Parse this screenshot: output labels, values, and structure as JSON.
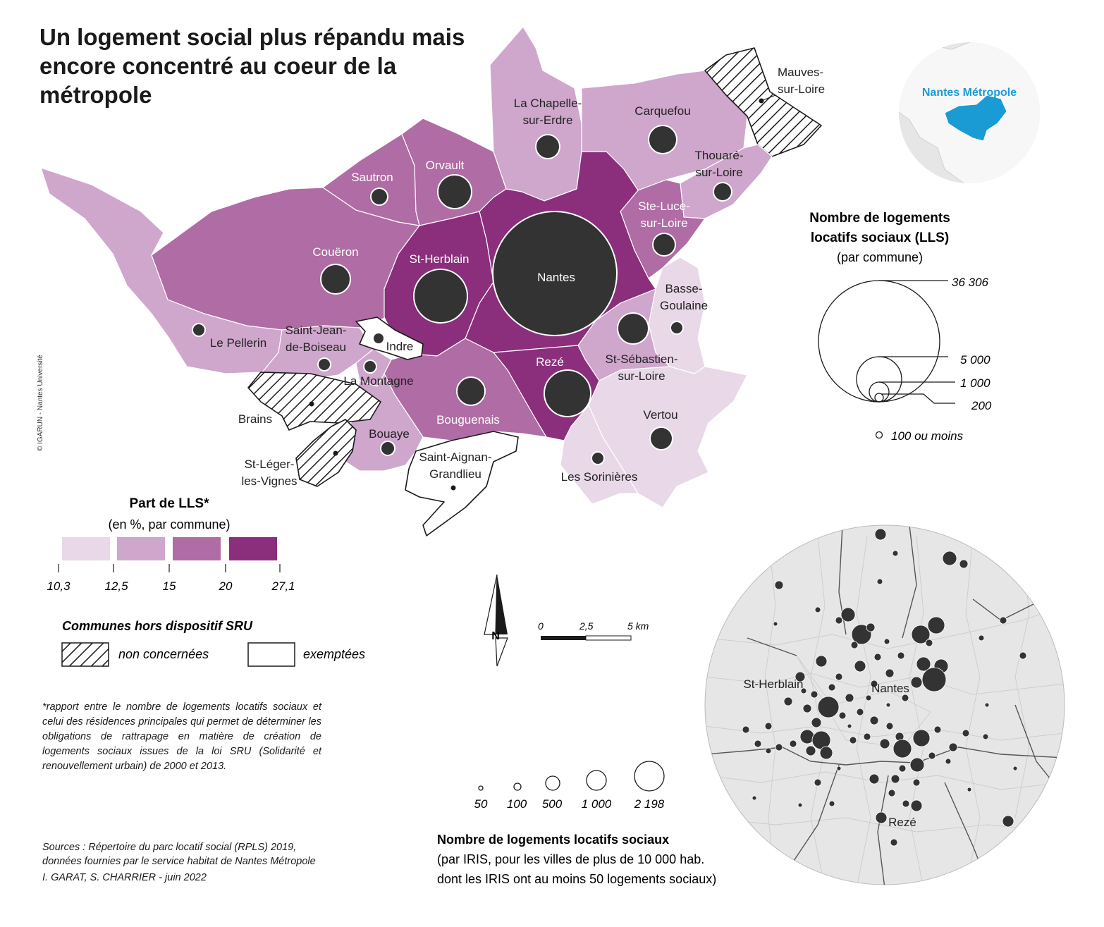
{
  "title": "Un logement social plus répandu mais encore concentré au coeur de la métropole",
  "colors": {
    "c1": "#e8d8e8",
    "c2": "#cfa6cc",
    "c3": "#b06ca4",
    "c4": "#8b2f7c",
    "bubble": "#333333",
    "inset_bg": "#e6e6e6",
    "locator_hl": "#1a9bd4"
  },
  "communes": [
    {
      "name": "Nantes",
      "class": 4,
      "lls_bubble": "Nantes"
    },
    {
      "name": "St-Herblain",
      "class": 4
    },
    {
      "name": "Rezé",
      "class": 4
    },
    {
      "name": "Orvault",
      "class": 3
    },
    {
      "name": "Sautron",
      "class": 3
    },
    {
      "name": "Couëron",
      "class": 3
    },
    {
      "name": "Ste-Luce-sur-Loire",
      "class": 3
    },
    {
      "name": "Bouguenais",
      "class": 3
    },
    {
      "name": "St-Sébastien-sur-Loire",
      "class": 2
    },
    {
      "name": "Carquefou",
      "class": 2
    },
    {
      "name": "La Chapelle-sur-Erdre",
      "class": 2
    },
    {
      "name": "Thouaré-sur-Loire",
      "class": 2
    },
    {
      "name": "Le Pellerin",
      "class": 2
    },
    {
      "name": "Saint-Jean-de-Boiseau",
      "class": 2
    },
    {
      "name": "La Montagne",
      "class": 2
    },
    {
      "name": "Bouaye",
      "class": 2
    },
    {
      "name": "Vertou",
      "class": 1
    },
    {
      "name": "Les Sorinières",
      "class": 1
    },
    {
      "name": "Basse-Goulaine",
      "class": 1
    },
    {
      "name": "Indre",
      "class": "exemptee"
    },
    {
      "name": "Saint-Aignan-Grandlieu",
      "class": "exemptee"
    },
    {
      "name": "Mauves-sur-Loire",
      "class": "non-concernee"
    },
    {
      "name": "Brains",
      "class": "non-concernee"
    },
    {
      "name": "St-Léger-les-Vignes",
      "class": "non-concernee"
    }
  ],
  "map_labels": {
    "mauves_1": "Mauves-",
    "mauves_2": "sur-Loire",
    "chapelle_1": "La Chapelle-",
    "chapelle_2": "sur-Erdre",
    "carquefou": "Carquefou",
    "thouare_1": "Thouaré-",
    "thouare_2": "sur-Loire",
    "sautron": "Sautron",
    "orvault": "Orvault",
    "steluce_1": "Ste-Luce-",
    "steluce_2": "sur-Loire",
    "coueron": "Couëron",
    "stherblain": "St-Herblain",
    "nantes": "Nantes",
    "basse_1": "Basse-",
    "basse_2": "Goulaine",
    "stjean_1": "Saint-Jean-",
    "stjean_2": "de-Boiseau",
    "indre": "Indre",
    "pellerin": "Le Pellerin",
    "stseb_1": "St-Sébastien-",
    "stseb_2": "sur-Loire",
    "reze": "Rezé",
    "montagne": "La Montagne",
    "brains": "Brains",
    "vertou": "Vertou",
    "bouguenais": "Bouguenais",
    "bouaye": "Bouaye",
    "staignan_1": "Saint-Aignan-",
    "staignan_2": "Grandlieu",
    "stleger_1": "St-Léger-",
    "stleger_2": "les-Vignes",
    "sorinieres": "Les Sorinières"
  },
  "locator": {
    "label": "Nantes Métropole"
  },
  "lls_legend": {
    "title_1": "Nombre de logements",
    "title_2": "locatifs sociaux (LLS)",
    "subtitle": "(par commune)",
    "values": [
      "36 306",
      "5 000",
      "1 000",
      "200",
      "100 ou moins"
    ]
  },
  "part_legend": {
    "title": "Part de LLS*",
    "subtitle": "(en %, par commune)",
    "breaks": [
      "10,3",
      "12,5",
      "15",
      "20",
      "27,1"
    ]
  },
  "sru_legend": {
    "title": "Communes hors dispositif SRU",
    "non_concernees": "non concernées",
    "exemptees": "exemptées"
  },
  "north": "N",
  "scale": {
    "labels": [
      "0",
      "2,5",
      "5 km"
    ]
  },
  "copyright": "© IGARUN - Nantes Université",
  "footnote": "*rapport entre le nombre de logements locatifs sociaux et celui des résidences principales qui permet de déterminer les obligations de rattrapage en matière de création de logements sociaux issues de la loi SRU (Solidarité et renouvellement urbain) de 2000 et 2013.",
  "sources": {
    "line1": "Sources : Répertoire du parc locatif social (RPLS) 2019,",
    "line2": "données fournies par le service habitat de Nantes Métropole"
  },
  "credit": "I. GARAT, S. CHARRIER - juin 2022",
  "iris_legend": {
    "values": [
      "50",
      "100",
      "500",
      "1 000",
      "2 198"
    ],
    "title": "Nombre de logements locatifs sociaux",
    "sub1": "(par IRIS, pour les villes de plus de 10 000 hab.",
    "sub2": "dont les IRIS ont au moins 50 logements sociaux)"
  },
  "inset_labels": {
    "stherblain": "St-Herblain",
    "nantes": "Nantes",
    "reze": "Rezé"
  }
}
